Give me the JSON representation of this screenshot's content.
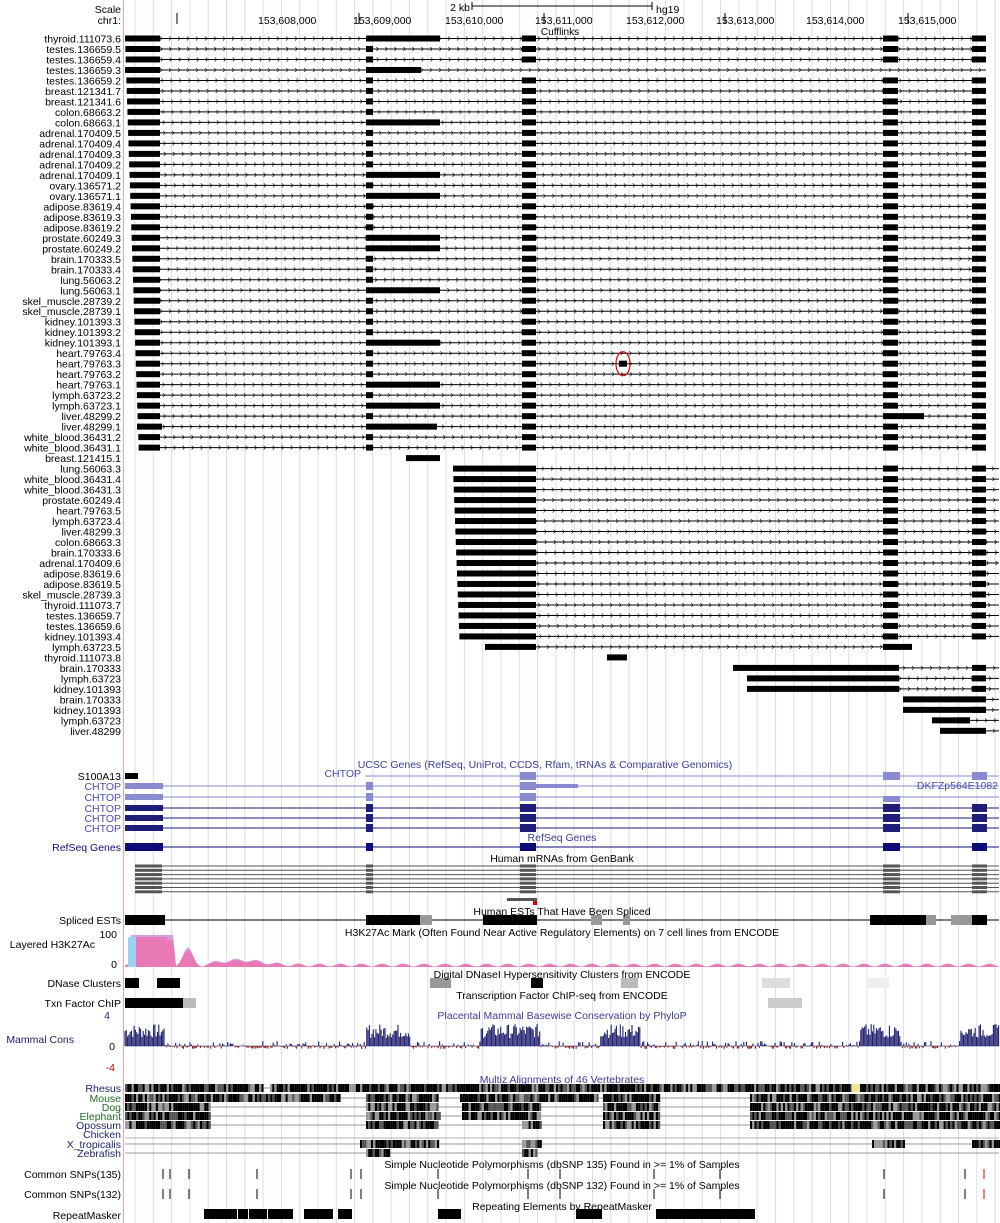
{
  "ruler": {
    "scale_label": "Scale",
    "scale_value": "2 kb",
    "assembly": "hg19",
    "chrom_label": "chr1:",
    "positions": [
      "153,608,000",
      "153,609,000",
      "153,610,000",
      "153,611,000",
      "153,612,000",
      "153,613,000",
      "153,614,000",
      "153,615,000"
    ]
  },
  "cufflinks": {
    "title": "Cufflinks",
    "rows": [
      "thyroid.111073.6",
      "testes.136659.5",
      "testes.136659.4",
      "testes.136659.3",
      "testes.136659.2",
      "breast.121341.7",
      "breast.121341.6",
      "colon.68663.2",
      "colon.68663.1",
      "adrenal.170409.5",
      "adrenal.170409.4",
      "adrenal.170409.3",
      "adrenal.170409.2",
      "adrenal.170409.1",
      "ovary.136571.2",
      "ovary.136571.1",
      "adipose.83619.4",
      "adipose.83619.3",
      "adipose.83619.2",
      "prostate.60249.3",
      "prostate.60249.2",
      "brain.170333.5",
      "brain.170333.4",
      "lung.56063.2",
      "lung.56063.1",
      "skel_muscle.28739.2",
      "skel_muscle.28739.1",
      "kidney.101393.3",
      "kidney.101393.2",
      "kidney.101393.1",
      "heart.79763.4",
      "heart.79763.3",
      "heart.79763.2",
      "heart.79763.1",
      "lymph.63723.2",
      "lymph.63723.1",
      "liver.48299.2",
      "liver.48299.1",
      "white_blood.36431.2",
      "white_blood.36431.1",
      "breast.121415.1",
      "lung.56063.3",
      "white_blood.36431.4",
      "white_blood.36431.3",
      "prostate.60249.4",
      "heart.79763.5",
      "lymph.63723.4",
      "liver.48299.3",
      "colon.68663.3",
      "brain.170333.6",
      "adrenal.170409.6",
      "adipose.83619.6",
      "adipose.83619.5",
      "skel_muscle.28739.3",
      "thyroid.111073.7",
      "testes.136659.7",
      "testes.136659.6",
      "kidney.101393.4",
      "lymph.63723.5",
      "thyroid.111073.8",
      "brain.170333",
      "lymph.63723",
      "kidney.101393",
      "brain.170333",
      "kidney.101393",
      "lymph.63723",
      "liver.48299"
    ]
  },
  "ucsc_genes": {
    "title": "UCSC Genes (RefSeq, UniProt, CCDS, Rfam, tRNAs & Comparative Genomics)",
    "rows": [
      "S100A13",
      "CHTOP",
      "CHTOP",
      "CHTOP",
      "CHTOP",
      "CHTOP"
    ],
    "inline_labels": {
      "chtop": "CHTOP",
      "dkfz": "DKFZp564E1082"
    }
  },
  "refseq": {
    "title": "RefSeq Genes",
    "label": "RefSeq Genes"
  },
  "mrna": {
    "title": "Human mRNAs from GenBank"
  },
  "est": {
    "title": "Human ESTs That Have Been Spliced",
    "label": "Spliced ESTs"
  },
  "h3k27ac": {
    "title": "H3K27Ac Mark (Often Found Near Active Regulatory Elements) on 7 cell lines from ENCODE",
    "label": "Layered H3K27Ac",
    "max": "100",
    "min": "0"
  },
  "dnase": {
    "title": "Digital DNaseI Hypersensitivity Clusters from ENCODE",
    "label": "DNase Clusters"
  },
  "txn": {
    "title": "Transcription Factor ChIP-seq from ENCODE",
    "label": "Txn Factor ChIP"
  },
  "cons": {
    "title": "Placental Mammal Basewise Conservation by PhyloP",
    "label": "Mammal Cons",
    "max": "4",
    "zero": "0",
    "min": "-4"
  },
  "multiz": {
    "title": "Multiz Alignments of 46 Vertebrates",
    "species": [
      {
        "name": "Rhesus",
        "color": "#1e1e6e"
      },
      {
        "name": "Mouse",
        "color": "#1e6e1e"
      },
      {
        "name": "Dog",
        "color": "#1e6e1e"
      },
      {
        "name": "Elephant",
        "color": "#1e6e1e"
      },
      {
        "name": "Opossum",
        "color": "#1e1e6e"
      },
      {
        "name": "Chicken",
        "color": "#1e1e6e"
      },
      {
        "name": "X_tropicalis",
        "color": "#1e1e6e"
      },
      {
        "name": "Zebrafish",
        "color": "#1e1e6e"
      }
    ]
  },
  "snp135": {
    "title": "Simple Nucleotide Polymorphisms (dbSNP 135) Found in >= 1% of Samples",
    "label": "Common SNPs(135)"
  },
  "snp132": {
    "title": "Simple Nucleotide Polymorphisms (dbSNP 132) Found in >= 1% of Samples",
    "label": "Common SNPs(132)"
  },
  "repeat": {
    "title": "Repeating Elements by RepeatMasker",
    "label": "RepeatMasker"
  },
  "colors": {
    "ucsc": "#8a8ad0",
    "ucsc_dark": "#1e1e78",
    "refseq": "#0c0c78",
    "highlight": "#e00000",
    "h3k_pink": "#e879b4",
    "cons": "#1e1e6e"
  }
}
